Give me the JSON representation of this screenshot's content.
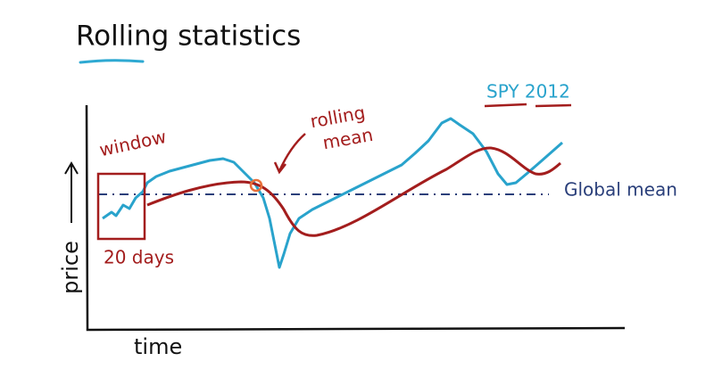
{
  "header": {
    "title": "Rolling statistics"
  },
  "annotations": {
    "window": "window",
    "days": "20 days",
    "rolling_mean": [
      "rolling",
      "mean"
    ],
    "series": "SPY 2012",
    "global_mean": "Global mean"
  },
  "axes": {
    "y": "price",
    "x": "time"
  }
}
